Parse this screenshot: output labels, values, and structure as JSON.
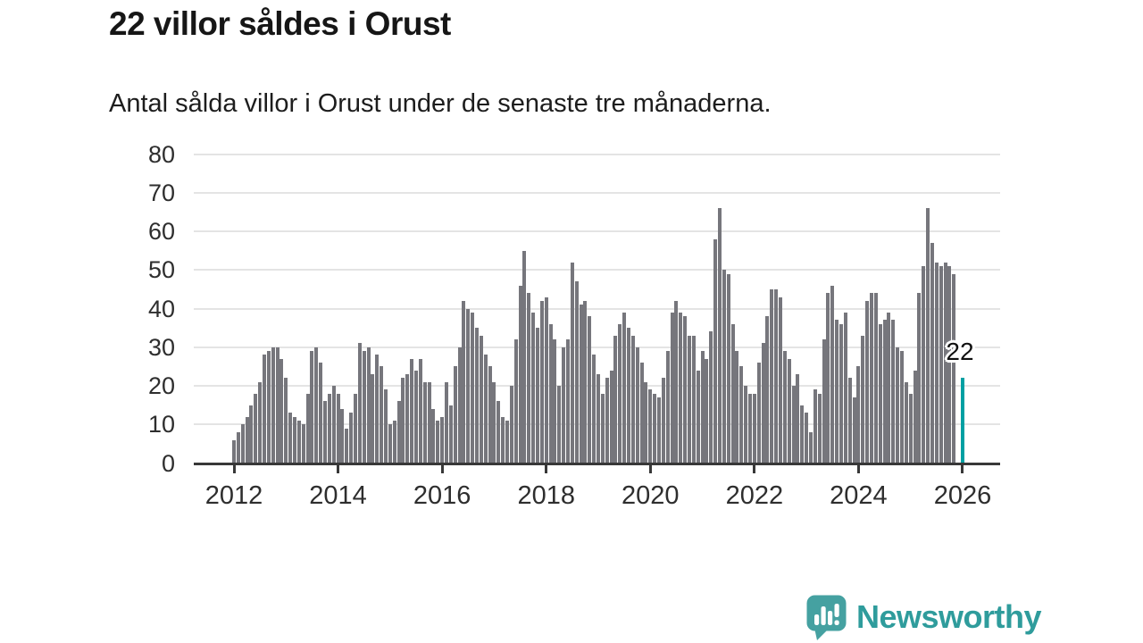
{
  "header": {
    "title": "22 villor såldes i Orust",
    "subtitle": "Antal sålda villor i Orust under de senaste tre månaderna."
  },
  "chart_data": {
    "type": "bar",
    "title": "22 villor såldes i Orust",
    "subtitle": "Antal sålda villor i Orust under de senaste tre månaderna.",
    "xlabel": "",
    "ylabel": "",
    "ylim": [
      0,
      80
    ],
    "yticks": [
      0,
      10,
      20,
      30,
      40,
      50,
      60,
      70,
      80
    ],
    "grid": true,
    "x_start_year": 2012,
    "x_tick_years": [
      2012,
      2014,
      2016,
      2018,
      2020,
      2022,
      2024,
      2026
    ],
    "values": [
      6,
      8,
      10,
      12,
      15,
      18,
      21,
      28,
      29,
      30,
      30,
      27,
      22,
      13,
      12,
      11,
      10,
      18,
      29,
      30,
      26,
      16,
      18,
      20,
      18,
      14,
      9,
      13,
      18,
      31,
      29,
      30,
      23,
      28,
      25,
      19,
      10,
      11,
      16,
      22,
      23,
      27,
      24,
      27,
      21,
      21,
      14,
      11,
      12,
      21,
      15,
      25,
      30,
      42,
      40,
      39,
      35,
      33,
      28,
      25,
      21,
      16,
      12,
      11,
      20,
      32,
      46,
      55,
      44,
      39,
      35,
      42,
      43,
      36,
      32,
      20,
      30,
      32,
      52,
      47,
      41,
      42,
      38,
      28,
      23,
      18,
      22,
      24,
      33,
      36,
      39,
      35,
      33,
      30,
      26,
      21,
      19,
      18,
      17,
      22,
      29,
      39,
      42,
      39,
      38,
      33,
      33,
      24,
      29,
      27,
      34,
      58,
      66,
      50,
      49,
      36,
      29,
      25,
      20,
      18,
      18,
      26,
      31,
      38,
      45,
      45,
      43,
      29,
      27,
      20,
      23,
      15,
      13,
      8,
      19,
      18,
      32,
      44,
      46,
      37,
      36,
      39,
      22,
      17,
      25,
      33,
      42,
      44,
      44,
      36,
      37,
      39,
      37,
      30,
      29,
      21,
      18,
      24,
      44,
      51,
      66,
      57,
      52,
      51,
      52,
      51,
      49
    ],
    "gap_slots_before_highlight": 1,
    "highlight": {
      "label": "22",
      "value": 22
    },
    "bar_color": "#76767c",
    "highlight_color": "#00a0a3",
    "legend": null
  },
  "footer": {
    "brand": "Newsworthy"
  },
  "icons": {
    "logo": "newsworthy-speech-bubble-chart-icon"
  },
  "colors": {
    "accent_teal": "#00a0a3",
    "bar_gray": "#76767c",
    "brand_teal": "#2f9c9c",
    "logo_bubble_teal": "#45a1a1",
    "axis": "#383838",
    "gridline": "#e4e4e4",
    "text": "#161616"
  }
}
